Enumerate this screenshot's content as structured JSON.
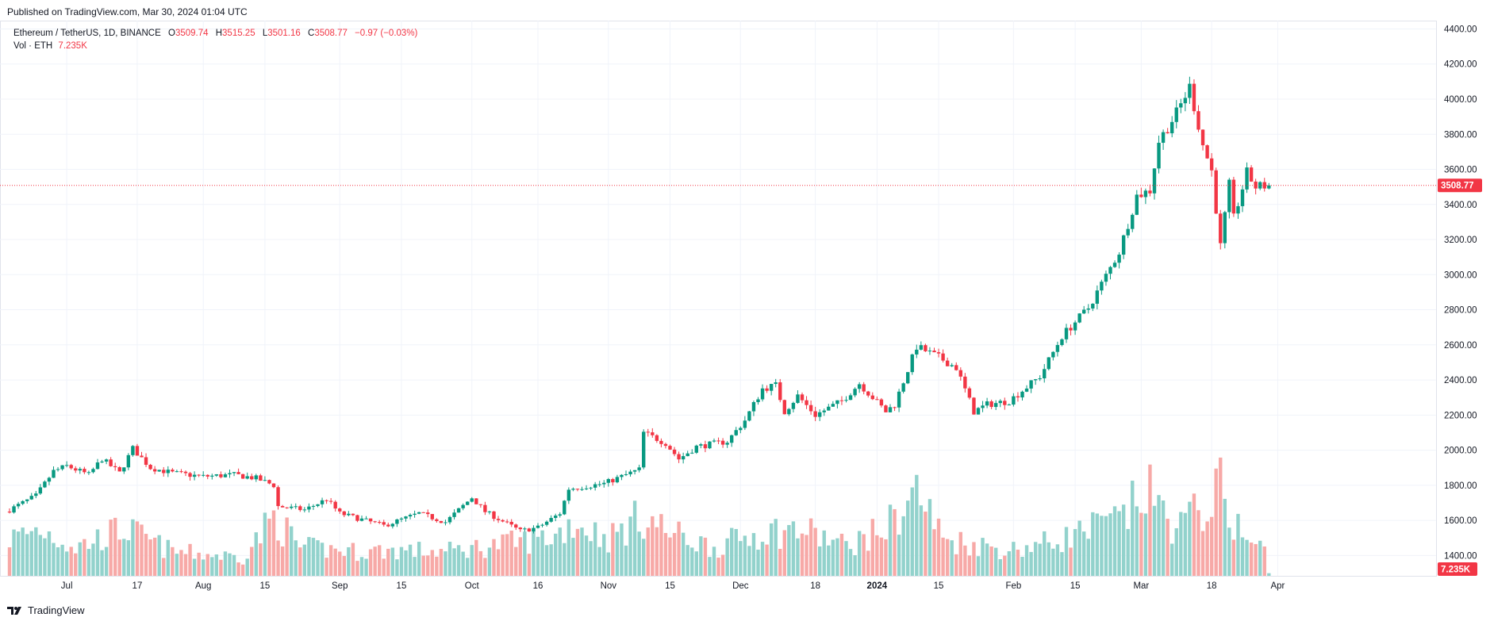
{
  "published": "Published on TradingView.com, Mar 30, 2024 01:04 UTC",
  "legend": {
    "symbol": "Ethereum / TetherUS, 1D, BINANCE",
    "o_label": "O",
    "o_value": "3509.74",
    "h_label": "H",
    "h_value": "3515.25",
    "l_label": "L",
    "l_value": "3501.16",
    "c_label": "C",
    "c_value": "3508.77",
    "change": "−0.97 (−0.03%)",
    "vol_label": "Vol · ETH",
    "vol_value": "7.235K"
  },
  "footer": {
    "brand": "TradingView"
  },
  "colors": {
    "up": "#089981",
    "down": "#f23645",
    "vol_up": "#92d2cc",
    "vol_down": "#f7a9a7",
    "grid": "#f0f3fa",
    "price_line": "#f23645"
  },
  "chart_data": {
    "type": "candlestick",
    "title": "Ethereum / TetherUS, 1D, BINANCE",
    "last_price_label": "3508.77",
    "last_volume_label": "7.235K",
    "y_ticks": [
      "1400.00",
      "1600.00",
      "1800.00",
      "2000.00",
      "2200.00",
      "2400.00",
      "2600.00",
      "2800.00",
      "3000.00",
      "3200.00",
      "3400.00",
      "3600.00",
      "3800.00",
      "4000.00",
      "4200.00",
      "4400.00"
    ],
    "x_ticks": [
      "Jul",
      "17",
      "Aug",
      "15",
      "Sep",
      "15",
      "Oct",
      "16",
      "Nov",
      "15",
      "Dec",
      "18",
      "2024",
      "15",
      "Feb",
      "15",
      "Mar",
      "18",
      "Apr"
    ],
    "grid": true,
    "start_date": "2023-06-18",
    "end_date": "2024-03-30",
    "anchors": [
      [
        "2023-06-18",
        1660
      ],
      [
        "2023-06-24",
        1740
      ],
      [
        "2023-06-28",
        1880
      ],
      [
        "2023-07-01",
        1910
      ],
      [
        "2023-07-06",
        1860
      ],
      [
        "2023-07-09",
        1950
      ],
      [
        "2023-07-13",
        1870
      ],
      [
        "2023-07-16",
        2010
      ],
      [
        "2023-07-20",
        1900
      ],
      [
        "2023-07-25",
        1870
      ],
      [
        "2023-08-01",
        1850
      ],
      [
        "2023-08-08",
        1860
      ],
      [
        "2023-08-13",
        1840
      ],
      [
        "2023-08-17",
        1800
      ],
      [
        "2023-08-18",
        1680
      ],
      [
        "2023-08-24",
        1660
      ],
      [
        "2023-08-29",
        1720
      ],
      [
        "2023-09-01",
        1640
      ],
      [
        "2023-09-11",
        1570
      ],
      [
        "2023-09-19",
        1640
      ],
      [
        "2023-09-25",
        1590
      ],
      [
        "2023-10-01",
        1730
      ],
      [
        "2023-10-04",
        1650
      ],
      [
        "2023-10-12",
        1540
      ],
      [
        "2023-10-16",
        1560
      ],
      [
        "2023-10-21",
        1640
      ],
      [
        "2023-10-23",
        1780
      ],
      [
        "2023-10-31",
        1810
      ],
      [
        "2023-11-08",
        1890
      ],
      [
        "2023-11-09",
        2100
      ],
      [
        "2023-11-14",
        2040
      ],
      [
        "2023-11-17",
        1950
      ],
      [
        "2023-11-21",
        2020
      ],
      [
        "2023-11-28",
        2050
      ],
      [
        "2023-12-02",
        2170
      ],
      [
        "2023-12-06",
        2350
      ],
      [
        "2023-12-09",
        2370
      ],
      [
        "2023-12-11",
        2220
      ],
      [
        "2023-12-14",
        2310
      ],
      [
        "2023-12-18",
        2200
      ],
      [
        "2023-12-24",
        2280
      ],
      [
        "2023-12-28",
        2380
      ],
      [
        "2024-01-03",
        2220
      ],
      [
        "2024-01-05",
        2260
      ],
      [
        "2024-01-10",
        2590
      ],
      [
        "2024-01-15",
        2530
      ],
      [
        "2024-01-19",
        2470
      ],
      [
        "2024-01-23",
        2220
      ],
      [
        "2024-01-26",
        2260
      ],
      [
        "2024-01-31",
        2280
      ],
      [
        "2024-02-07",
        2420
      ],
      [
        "2024-02-12",
        2650
      ],
      [
        "2024-02-18",
        2810
      ],
      [
        "2024-02-25",
        3130
      ],
      [
        "2024-02-29",
        3450
      ],
      [
        "2024-03-03",
        3480
      ],
      [
        "2024-03-05",
        3760
      ],
      [
        "2024-03-09",
        3920
      ],
      [
        "2024-03-12",
        4070
      ],
      [
        "2024-03-15",
        3740
      ],
      [
        "2024-03-17",
        3590
      ],
      [
        "2024-03-19",
        3160
      ],
      [
        "2024-03-21",
        3510
      ],
      [
        "2024-03-22",
        3320
      ],
      [
        "2024-03-25",
        3580
      ],
      [
        "2024-03-27",
        3500
      ],
      [
        "2024-03-30",
        3508.77
      ]
    ],
    "volume_anchors": [
      [
        "2023-06-18",
        260
      ],
      [
        "2023-06-25",
        330
      ],
      [
        "2023-07-03",
        200
      ],
      [
        "2023-07-14",
        330
      ],
      [
        "2023-07-25",
        170
      ],
      [
        "2023-08-10",
        130
      ],
      [
        "2023-08-17",
        410
      ],
      [
        "2023-08-23",
        200
      ],
      [
        "2023-09-05",
        170
      ],
      [
        "2023-09-14",
        180
      ],
      [
        "2023-09-25",
        170
      ],
      [
        "2023-10-10",
        230
      ],
      [
        "2023-10-20",
        280
      ],
      [
        "2023-10-24",
        380
      ],
      [
        "2023-11-01",
        260
      ],
      [
        "2023-11-09",
        420
      ],
      [
        "2023-11-15",
        300
      ],
      [
        "2023-11-25",
        200
      ],
      [
        "2023-12-06",
        310
      ],
      [
        "2023-12-15",
        320
      ],
      [
        "2023-12-25",
        210
      ],
      [
        "2024-01-03",
        330
      ],
      [
        "2024-01-10",
        600
      ],
      [
        "2024-01-16",
        260
      ],
      [
        "2024-01-31",
        180
      ],
      [
        "2024-02-10",
        240
      ],
      [
        "2024-02-26",
        400
      ],
      [
        "2024-03-02",
        600
      ],
      [
        "2024-03-09",
        330
      ],
      [
        "2024-03-14",
        450
      ],
      [
        "2024-03-19",
        600
      ],
      [
        "2024-03-24",
        270
      ],
      [
        "2024-03-29",
        180
      ],
      [
        "2024-03-30",
        20
      ]
    ],
    "volume_max": 850
  }
}
